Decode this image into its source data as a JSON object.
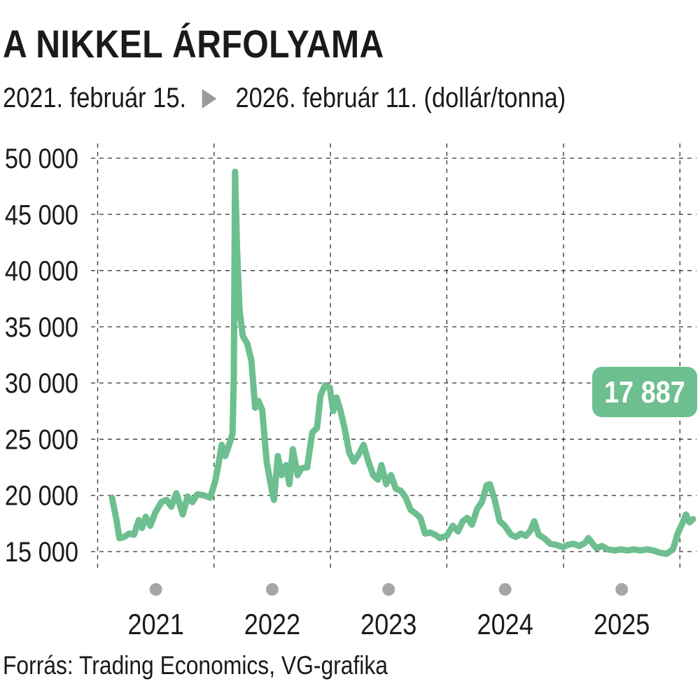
{
  "header": {
    "title": "A NIKKEL ÁRFOLYAMA",
    "subtitle_start": "2021. február 15.",
    "subtitle_end": "2026. február 11. (dollár/tonna)",
    "arrow_icon": "play-triangle-icon"
  },
  "footer": {
    "source": "Forrás: Trading Economics, VG-grafika"
  },
  "colors": {
    "line": "#6dbf8f",
    "badge": "#6dbf8f",
    "grid": "#333333",
    "year_dot": "#a6a6a6"
  },
  "chart_data": {
    "type": "line",
    "title": "A NIKKEL ÁRFOLYAMA",
    "xlabel": "",
    "ylabel": "",
    "x_range": [
      "2021-02-15",
      "2026-02-11"
    ],
    "ylim": [
      14000,
      51000
    ],
    "yticks": [
      15000,
      20000,
      25000,
      30000,
      35000,
      40000,
      45000,
      50000
    ],
    "ytick_labels": [
      "15 000",
      "20 000",
      "25 000",
      "30 000",
      "35 000",
      "40 000",
      "45 000",
      "50 000"
    ],
    "xticks": [
      "2021",
      "2022",
      "2023",
      "2024",
      "2025"
    ],
    "grid": true,
    "last_value_label": "17 887",
    "series": [
      {
        "points": [
          [
            "2021-02-15",
            19800
          ],
          [
            "2021-03-01",
            17800
          ],
          [
            "2021-03-10",
            16200
          ],
          [
            "2021-03-25",
            16300
          ],
          [
            "2021-04-10",
            16600
          ],
          [
            "2021-04-25",
            16500
          ],
          [
            "2021-05-10",
            17800
          ],
          [
            "2021-05-20",
            17100
          ],
          [
            "2021-06-01",
            18100
          ],
          [
            "2021-06-15",
            17300
          ],
          [
            "2021-07-01",
            18500
          ],
          [
            "2021-07-20",
            19400
          ],
          [
            "2021-08-05",
            19600
          ],
          [
            "2021-08-20",
            19000
          ],
          [
            "2021-09-05",
            20200
          ],
          [
            "2021-09-25",
            18300
          ],
          [
            "2021-10-10",
            19900
          ],
          [
            "2021-10-25",
            19400
          ],
          [
            "2021-11-10",
            20100
          ],
          [
            "2021-12-01",
            20000
          ],
          [
            "2021-12-20",
            19800
          ],
          [
            "2022-01-05",
            21300
          ],
          [
            "2022-01-15",
            22800
          ],
          [
            "2022-01-25",
            24500
          ],
          [
            "2022-02-05",
            23500
          ],
          [
            "2022-02-15",
            24300
          ],
          [
            "2022-02-28",
            25500
          ],
          [
            "2022-03-04",
            30500
          ],
          [
            "2022-03-08",
            48800
          ],
          [
            "2022-03-14",
            42000
          ],
          [
            "2022-03-22",
            36500
          ],
          [
            "2022-04-01",
            34200
          ],
          [
            "2022-04-15",
            33500
          ],
          [
            "2022-04-28",
            32000
          ],
          [
            "2022-05-10",
            27800
          ],
          [
            "2022-05-20",
            28400
          ],
          [
            "2022-06-01",
            27600
          ],
          [
            "2022-06-15",
            23000
          ],
          [
            "2022-07-01",
            20500
          ],
          [
            "2022-07-08",
            19600
          ],
          [
            "2022-07-20",
            23500
          ],
          [
            "2022-08-01",
            21800
          ],
          [
            "2022-08-15",
            22700
          ],
          [
            "2022-08-25",
            21000
          ],
          [
            "2022-09-05",
            24100
          ],
          [
            "2022-09-20",
            21800
          ],
          [
            "2022-10-01",
            22400
          ],
          [
            "2022-10-20",
            22500
          ],
          [
            "2022-11-05",
            25600
          ],
          [
            "2022-11-20",
            26000
          ],
          [
            "2022-12-01",
            28900
          ],
          [
            "2022-12-15",
            29800
          ],
          [
            "2022-12-30",
            29600
          ],
          [
            "2023-01-10",
            27500
          ],
          [
            "2023-01-20",
            28700
          ],
          [
            "2023-02-01",
            27600
          ],
          [
            "2023-02-15",
            25900
          ],
          [
            "2023-03-01",
            23800
          ],
          [
            "2023-03-15",
            23000
          ],
          [
            "2023-03-30",
            23600
          ],
          [
            "2023-04-15",
            24500
          ],
          [
            "2023-04-30",
            23000
          ],
          [
            "2023-05-15",
            21800
          ],
          [
            "2023-05-30",
            21400
          ],
          [
            "2023-06-10",
            22700
          ],
          [
            "2023-06-25",
            21000
          ],
          [
            "2023-07-10",
            21800
          ],
          [
            "2023-07-25",
            20600
          ],
          [
            "2023-08-10",
            20400
          ],
          [
            "2023-08-25",
            19800
          ],
          [
            "2023-09-10",
            18700
          ],
          [
            "2023-09-25",
            18400
          ],
          [
            "2023-10-10",
            18000
          ],
          [
            "2023-10-25",
            16600
          ],
          [
            "2023-11-10",
            16700
          ],
          [
            "2023-11-25",
            16500
          ],
          [
            "2023-12-10",
            16200
          ],
          [
            "2024-01-01",
            16400
          ],
          [
            "2024-01-20",
            17300
          ],
          [
            "2024-02-05",
            16800
          ],
          [
            "2024-02-20",
            17700
          ],
          [
            "2024-03-05",
            18000
          ],
          [
            "2024-03-20",
            17400
          ],
          [
            "2024-04-05",
            18800
          ],
          [
            "2024-04-20",
            19400
          ],
          [
            "2024-05-05",
            20900
          ],
          [
            "2024-05-15",
            21000
          ],
          [
            "2024-05-30",
            19600
          ],
          [
            "2024-06-15",
            17700
          ],
          [
            "2024-07-01",
            17300
          ],
          [
            "2024-07-20",
            16500
          ],
          [
            "2024-08-05",
            16300
          ],
          [
            "2024-08-20",
            16600
          ],
          [
            "2024-09-05",
            16400
          ],
          [
            "2024-09-20",
            16900
          ],
          [
            "2024-10-01",
            17700
          ],
          [
            "2024-10-15",
            16500
          ],
          [
            "2024-11-01",
            16200
          ],
          [
            "2024-11-20",
            15700
          ],
          [
            "2024-12-10",
            15600
          ],
          [
            "2024-12-30",
            15400
          ],
          [
            "2025-01-15",
            15600
          ],
          [
            "2025-02-01",
            15700
          ],
          [
            "2025-02-20",
            15500
          ],
          [
            "2025-03-10",
            15800
          ],
          [
            "2025-03-20",
            16200
          ],
          [
            "2025-04-05",
            15600
          ],
          [
            "2025-04-15",
            15300
          ],
          [
            "2025-05-01",
            15500
          ],
          [
            "2025-05-20",
            15200
          ],
          [
            "2025-06-10",
            15100
          ],
          [
            "2025-06-30",
            15200
          ],
          [
            "2025-07-20",
            15100
          ],
          [
            "2025-08-10",
            15200
          ],
          [
            "2025-08-30",
            15100
          ],
          [
            "2025-09-20",
            15200
          ],
          [
            "2025-10-10",
            15100
          ],
          [
            "2025-10-30",
            14900
          ],
          [
            "2025-11-20",
            14800
          ],
          [
            "2025-12-10",
            15200
          ],
          [
            "2025-12-25",
            16600
          ],
          [
            "2026-01-10",
            17600
          ],
          [
            "2026-01-20",
            18300
          ],
          [
            "2026-01-31",
            17600
          ],
          [
            "2026-02-11",
            17887
          ]
        ]
      }
    ]
  }
}
